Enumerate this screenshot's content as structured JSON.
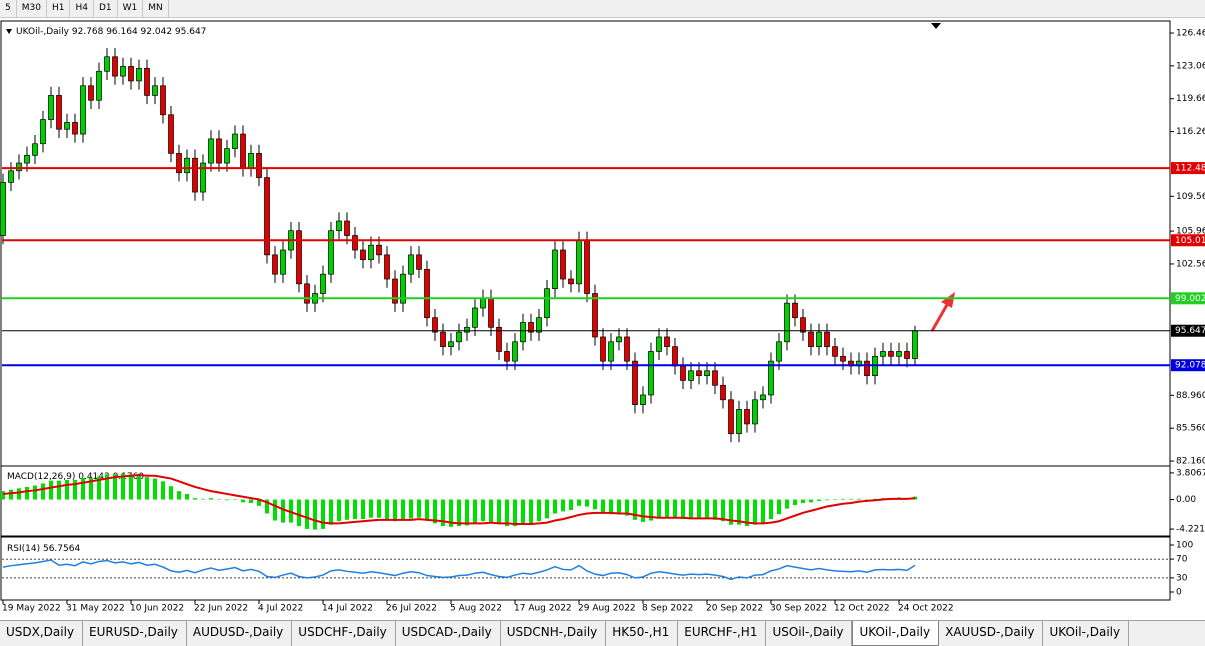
{
  "toolbar": {
    "items": [
      "5",
      "M30",
      "H1",
      "H4",
      "D1",
      "W1",
      "MN"
    ]
  },
  "tabs": {
    "items": [
      "USDX,Daily",
      "EURUSD-,Daily",
      "AUDUSD-,Daily",
      "USDCHF-,Daily",
      "USDCAD-,Daily",
      "USDCNH-,Daily",
      "HK50-,H1",
      "EURCHF-,H1",
      "USOil-,Daily",
      "UKOil-,Daily",
      "XAUUSD-,Daily",
      "UKOil-,Daily"
    ],
    "active": 9
  },
  "chart_data": [
    {
      "type": "candlestick",
      "title": "UKOil-,Daily",
      "values_text": "92.768 96.164 92.042 95.647",
      "up_color": "#00d000",
      "down_color": "#e00000",
      "categories": [
        "19 May 2022",
        null,
        null,
        null,
        null,
        null,
        null,
        null,
        "31 May 2022",
        null,
        null,
        null,
        null,
        null,
        null,
        null,
        "10 Jun 2022",
        null,
        null,
        null,
        null,
        null,
        null,
        null,
        "22 Jun 2022",
        null,
        null,
        null,
        null,
        null,
        null,
        null,
        "4 Jul 2022",
        null,
        null,
        null,
        null,
        null,
        null,
        null,
        "14 Jul 2022",
        null,
        null,
        null,
        null,
        null,
        null,
        null,
        "26 Jul 2022",
        null,
        null,
        null,
        null,
        null,
        null,
        null,
        "5 Aug 2022",
        null,
        null,
        null,
        null,
        null,
        null,
        null,
        "17 Aug 2022",
        null,
        null,
        null,
        null,
        null,
        null,
        null,
        "29 Aug 2022",
        null,
        null,
        null,
        null,
        null,
        null,
        null,
        "8 Sep 2022",
        null,
        null,
        null,
        null,
        null,
        null,
        null,
        "20 Sep 2022",
        null,
        null,
        null,
        null,
        null,
        null,
        null,
        "30 Sep 2022",
        null,
        null,
        null,
        null,
        null,
        null,
        null,
        "12 Oct 2022",
        null,
        null,
        null,
        null,
        null,
        null,
        null,
        "24 Oct 2022",
        null,
        null
      ],
      "open": [
        105.5,
        111,
        112.2,
        113,
        113.8,
        115,
        117.5,
        120,
        116.5,
        117.2,
        116,
        121,
        119.5,
        122.5,
        124,
        122,
        123,
        121.5,
        122.8,
        120,
        121,
        118,
        114,
        112,
        113.5,
        110,
        113,
        115.5,
        113,
        114.5,
        116,
        112.5,
        114,
        111.5,
        103.5,
        101.5,
        104,
        106,
        100.5,
        98.5,
        99.5,
        101.5,
        106,
        107,
        105.5,
        104,
        103,
        104.5,
        103.5,
        101,
        98.5,
        101.5,
        103.5,
        102,
        97,
        95.5,
        94,
        94.5,
        95.5,
        96,
        98,
        99,
        96,
        93.5,
        92.5,
        94.5,
        96.5,
        95.5,
        97,
        100,
        104,
        101,
        100.5,
        105,
        99.5,
        95,
        92.5,
        94.5,
        95,
        92.5,
        88,
        89,
        93.5,
        95,
        94,
        92,
        90.5,
        91.5,
        91,
        91.5,
        90,
        88.5,
        85,
        87.5,
        86,
        88.5,
        89,
        92.5,
        94.5,
        98.5,
        97,
        95.5,
        94,
        95.5,
        94,
        93,
        92.5,
        92,
        92.5,
        91,
        93,
        93.5,
        93,
        93.5,
        92.768
      ],
      "high": [
        111.9,
        113.1,
        113.9,
        114.7,
        115.9,
        118.4,
        120.9,
        120.9,
        118.1,
        118.1,
        121.9,
        121.9,
        123.4,
        124.9,
        124.9,
        123.9,
        123.9,
        123.7,
        123.7,
        121.9,
        121.9,
        118.9,
        114.9,
        114.4,
        114.4,
        113.9,
        116.4,
        116.4,
        115.4,
        116.9,
        116.9,
        114.9,
        114.9,
        112.4,
        104.4,
        104.9,
        106.9,
        106.9,
        101.4,
        100.4,
        102.4,
        106.9,
        107.9,
        107.9,
        106.4,
        104.9,
        105.4,
        105.4,
        104.4,
        101.9,
        102.4,
        104.4,
        104.4,
        102.9,
        97.9,
        96.4,
        95.4,
        96.4,
        96.9,
        98.9,
        99.9,
        99.9,
        96.9,
        94.4,
        95.4,
        97.4,
        97.4,
        97.9,
        100.9,
        104.9,
        104.9,
        101.9,
        105.9,
        105.9,
        100.4,
        95.9,
        95.4,
        95.9,
        95.9,
        93.4,
        89.9,
        94.4,
        95.9,
        95.9,
        94.9,
        92.9,
        92.4,
        92.4,
        92.4,
        92.4,
        90.9,
        89.4,
        88.4,
        88.4,
        89.4,
        89.9,
        93.4,
        95.4,
        99.4,
        99.4,
        97.9,
        96.4,
        96.4,
        96.4,
        94.9,
        93.9,
        93.4,
        93.4,
        93.4,
        93.9,
        94.4,
        94.4,
        94.4,
        94.4,
        96.164
      ],
      "low": [
        104.6,
        110.1,
        111.3,
        112.1,
        112.9,
        114.1,
        116.6,
        115.6,
        115.6,
        115.1,
        115.1,
        118.6,
        118.6,
        121.6,
        121.1,
        121.1,
        120.6,
        120.6,
        119.1,
        119.1,
        117.1,
        113.1,
        111.1,
        111.1,
        109.1,
        109.1,
        112.1,
        112.1,
        112.1,
        113.6,
        111.6,
        111.6,
        110.6,
        102.6,
        100.6,
        100.6,
        103.1,
        99.6,
        97.6,
        97.6,
        98.6,
        100.6,
        105.1,
        104.6,
        103.1,
        102.1,
        102.1,
        102.6,
        100.1,
        97.6,
        97.6,
        100.6,
        101.1,
        96.1,
        94.6,
        93.1,
        93.1,
        93.6,
        94.6,
        95.1,
        97.1,
        95.1,
        92.6,
        91.6,
        91.6,
        93.6,
        94.6,
        94.6,
        96.1,
        99.1,
        100.1,
        99.6,
        99.6,
        98.6,
        94.1,
        91.6,
        91.6,
        93.6,
        91.6,
        87.1,
        87.1,
        88.1,
        92.6,
        93.1,
        91.1,
        89.6,
        89.6,
        90.1,
        90.1,
        89.1,
        87.6,
        84.1,
        84.1,
        85.1,
        85.1,
        87.6,
        88.1,
        91.6,
        93.6,
        96.1,
        94.6,
        93.1,
        93.1,
        93.1,
        92.1,
        91.6,
        91.1,
        91.1,
        90.1,
        90.1,
        92.1,
        92.1,
        92.1,
        91.868,
        92.042
      ],
      "close": [
        111,
        112.2,
        113,
        113.8,
        115,
        117.5,
        120,
        116.5,
        117.2,
        116,
        121,
        119.5,
        122.5,
        124,
        122,
        123,
        121.5,
        122.8,
        120,
        121,
        118,
        114,
        112,
        113.5,
        110,
        113,
        115.5,
        113,
        114.5,
        116,
        112.5,
        114,
        111.5,
        103.5,
        101.5,
        104,
        106,
        100.5,
        98.5,
        99.5,
        101.5,
        106,
        107,
        105.5,
        104,
        103,
        104.5,
        103.5,
        101,
        98.5,
        101.5,
        103.5,
        102,
        97,
        95.5,
        94,
        94.5,
        95.5,
        96,
        98,
        99,
        96,
        93.5,
        92.5,
        94.5,
        96.5,
        95.5,
        97,
        100,
        104,
        101,
        100.5,
        105,
        99.5,
        95,
        92.5,
        94.5,
        95,
        92.5,
        88,
        89,
        93.5,
        95,
        94,
        92,
        90.5,
        91.5,
        91,
        91.5,
        90,
        88.5,
        85,
        87.5,
        86,
        88.5,
        89,
        92.5,
        94.5,
        98.5,
        97,
        95.5,
        94,
        95.5,
        94,
        93,
        92.5,
        92,
        92.5,
        91,
        93,
        93.5,
        93,
        93.5,
        92.768,
        95.647
      ],
      "hlines": [
        {
          "value": 112.48,
          "color": "#e00000"
        },
        {
          "value": 105.01,
          "color": "#e00000"
        },
        {
          "value": 99.002,
          "color": "#20d020"
        },
        {
          "value": 95.647,
          "color": "#000000"
        },
        {
          "value": 92.078,
          "color": "#0000e0"
        }
      ],
      "ylim": [
        81.75,
        127.6
      ],
      "yticks": [
        {
          "value": 126.46,
          "label": "126.460"
        },
        {
          "value": 123.06,
          "label": "123.060"
        },
        {
          "value": 119.66,
          "label": "119.660"
        },
        {
          "value": 116.26,
          "label": "116.260"
        },
        {
          "value": 109.56,
          "label": "109.560"
        },
        {
          "value": 105.96,
          "label": "105.960"
        },
        {
          "value": 102.56,
          "label": "102.560"
        },
        {
          "value": 88.96,
          "label": "88.960"
        },
        {
          "value": 85.56,
          "label": "85.560"
        },
        {
          "value": 82.16,
          "label": "82.160"
        }
      ]
    },
    {
      "type": "macd",
      "title": "MACD(12,26,9)",
      "values_text": "0.4143 0.1760",
      "color": "#00e000",
      "values": [
        1.2,
        1.4,
        1.6,
        1.8,
        2,
        2.3,
        2.7,
        2.7,
        2.8,
        2.8,
        3.1,
        3.1,
        3.3,
        3.6,
        3.6,
        3.7,
        3.6,
        3.5,
        3.2,
        3,
        2.6,
        1.9,
        1.2,
        0.8,
        0.2,
        0.1,
        0.2,
        0,
        -0.1,
        0,
        -0.4,
        -0.5,
        -0.9,
        -2,
        -3,
        -3.3,
        -3.3,
        -3.8,
        -4.2,
        -4.3,
        -4.2,
        -3.6,
        -3.1,
        -2.9,
        -2.8,
        -2.8,
        -2.6,
        -2.6,
        -2.8,
        -3.1,
        -3,
        -2.7,
        -2.6,
        -3,
        -3.4,
        -3.8,
        -3.9,
        -3.8,
        -3.7,
        -3.4,
        -3.1,
        -3.2,
        -3.5,
        -3.8,
        -3.8,
        -3.5,
        -3.4,
        -3.1,
        -2.7,
        -2,
        -1.7,
        -1.5,
        -0.9,
        -1,
        -1.4,
        -2,
        -2.1,
        -2.1,
        -2.3,
        -2.9,
        -3.2,
        -3,
        -2.7,
        -2.6,
        -2.6,
        -2.8,
        -2.8,
        -2.8,
        -2.8,
        -2.9,
        -3.1,
        -3.6,
        -3.6,
        -3.8,
        -3.6,
        -3.4,
        -2.8,
        -2.1,
        -1.3,
        -0.8,
        -0.5,
        -0.4,
        -0.2,
        -0.1,
        0,
        0.1,
        0.1,
        0.1,
        0,
        0.1,
        0.2,
        0.2,
        0.3,
        0.2,
        0.4143
      ],
      "signal": {
        "color": "#e00000",
        "values": [
          0.8,
          0.9,
          1,
          1.2,
          1.3,
          1.5,
          1.7,
          1.9,
          2.1,
          2.2,
          2.4,
          2.6,
          2.8,
          3,
          3.2,
          3.3,
          3.4,
          3.5,
          3.4,
          3.4,
          3.2,
          3,
          2.6,
          2.2,
          1.8,
          1.5,
          1.2,
          1,
          0.8,
          0.6,
          0.4,
          0.2,
          0,
          -0.4,
          -0.9,
          -1.4,
          -1.8,
          -2.2,
          -2.6,
          -3,
          -3.3,
          -3.4,
          -3.4,
          -3.3,
          -3.2,
          -3.1,
          -3,
          -2.9,
          -2.9,
          -2.9,
          -2.9,
          -2.9,
          -2.8,
          -2.9,
          -3,
          -3.1,
          -3.3,
          -3.4,
          -3.4,
          -3.4,
          -3.4,
          -3.3,
          -3.4,
          -3.4,
          -3.5,
          -3.5,
          -3.5,
          -3.4,
          -3.3,
          -3,
          -2.8,
          -2.5,
          -2.2,
          -2,
          -1.9,
          -1.9,
          -1.9,
          -2,
          -2,
          -2.2,
          -2.4,
          -2.5,
          -2.6,
          -2.6,
          -2.6,
          -2.6,
          -2.7,
          -2.7,
          -2.7,
          -2.7,
          -2.8,
          -3,
          -3.1,
          -3.3,
          -3.4,
          -3.4,
          -3.3,
          -3.1,
          -2.7,
          -2.3,
          -1.9,
          -1.6,
          -1.3,
          -1,
          -0.8,
          -0.6,
          -0.5,
          -0.3,
          -0.2,
          -0.1,
          0,
          0.1,
          0.1,
          0.1,
          0.176
        ]
      },
      "ylim": [
        -5.07,
        4.65
      ],
      "yticks": [
        3.8067,
        {
          "value": 0,
          "label": "0.00"
        },
        -4.221
      ]
    },
    {
      "type": "line",
      "title": "RSI(14)",
      "values_text": "56.7564",
      "color": "#2080e0",
      "values": [
        53,
        56,
        58,
        60,
        62,
        65,
        68,
        57,
        59,
        56,
        64,
        60,
        65,
        67,
        62,
        64,
        60,
        63,
        57,
        59,
        53,
        45,
        42,
        46,
        41,
        47,
        51,
        46,
        49,
        52,
        45,
        48,
        44,
        33,
        31,
        36,
        40,
        33,
        30,
        32,
        36,
        45,
        47,
        44,
        42,
        40,
        43,
        41,
        38,
        35,
        40,
        43,
        41,
        35,
        33,
        31,
        32,
        35,
        36,
        40,
        42,
        37,
        33,
        31,
        36,
        40,
        38,
        42,
        47,
        54,
        48,
        47,
        56,
        45,
        38,
        35,
        40,
        41,
        37,
        30,
        32,
        40,
        43,
        41,
        38,
        36,
        38,
        37,
        38,
        36,
        33,
        27,
        32,
        30,
        36,
        37,
        45,
        49,
        56,
        53,
        50,
        47,
        50,
        47,
        45,
        44,
        43,
        45,
        42,
        47,
        48,
        47,
        48,
        46,
        56.7564
      ],
      "levels": [
        70,
        30
      ],
      "ylim": [
        -14.9,
        114.9
      ],
      "yticks": [
        100,
        70,
        30,
        0
      ]
    }
  ]
}
